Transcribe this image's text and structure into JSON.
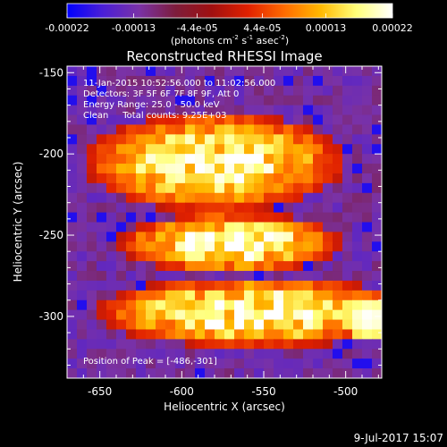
{
  "colorbar": {
    "tick_labels": [
      "-0.00022",
      "-0.00013",
      "-4.4e-05",
      "4.4e-05",
      "0.00013",
      "0.00022"
    ],
    "tick_values": [
      -0.00022,
      -0.00013,
      -4.4e-05,
      4.4e-05,
      0.00013,
      0.00022
    ],
    "range": [
      -0.00022,
      0.00022
    ],
    "units_parts": [
      "(photons cm",
      "-2",
      " s",
      "-1",
      " asec",
      "-2",
      ")"
    ],
    "stops": [
      "#0000ff",
      "#4b1fd6",
      "#7a32a6",
      "#7d1d3c",
      "#a01010",
      "#e02000",
      "#ff6a00",
      "#ffb800",
      "#ffff7a",
      "#ffffff"
    ]
  },
  "chart_data": {
    "type": "heatmap",
    "title": "Reconstructed RHESSI Image",
    "xlabel": "Heliocentric X (arcsec)",
    "ylabel": "Heliocentric Y (arcsec)",
    "xlim": [
      -670,
      -478
    ],
    "ylim": [
      -338,
      -146
    ],
    "xticks": [
      -650,
      -600,
      -550,
      -500
    ],
    "yticks": [
      -300,
      -250,
      -200,
      -150
    ],
    "peak": [
      -486,
      -301
    ],
    "bright_regions": [
      {
        "x": [
          -640,
          -520
        ],
        "y": [
          -225,
          -185
        ]
      },
      {
        "x": [
          -620,
          -520
        ],
        "y": [
          -265,
          -245
        ]
      },
      {
        "x": [
          -630,
          -480
        ],
        "y": [
          -310,
          -285
        ]
      }
    ],
    "annotations": {
      "line1": "11-Jan-2015 10:52:56.000 to 11:02:56.000",
      "line2": "Detectors: 3F 5F 6F 7F 8F 9F, Att 0",
      "line3": "Energy Range: 25.0 - 50.0 keV",
      "line4": "Clean     Total counts: 9.25E+03",
      "peak_label": "Position of Peak = [-486,-301]"
    }
  },
  "footer": {
    "timestamp": "9-Jul-2017 15:07"
  }
}
